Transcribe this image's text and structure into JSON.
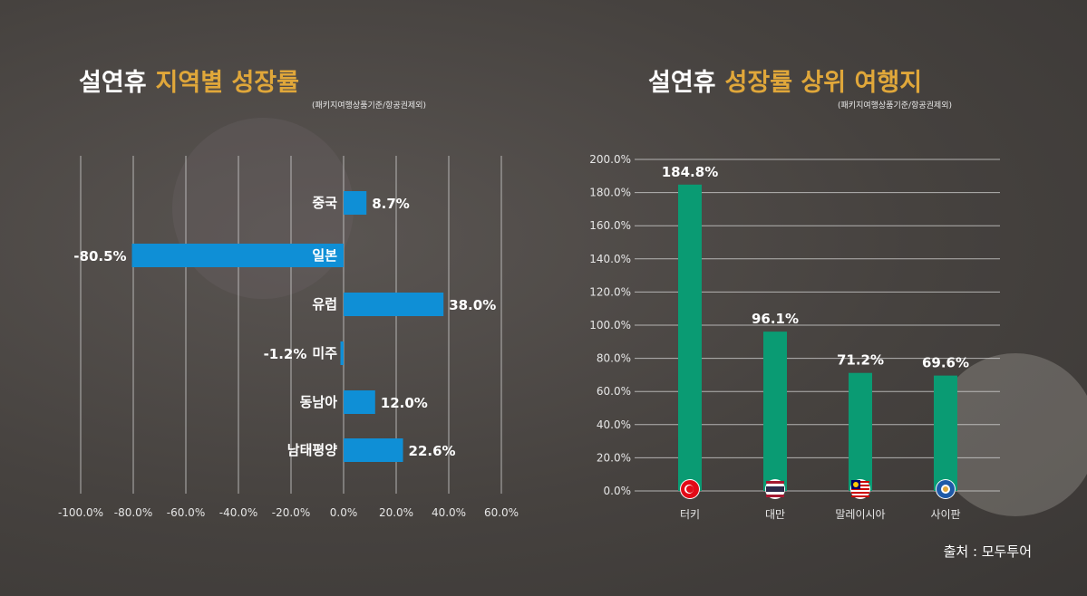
{
  "left": {
    "title_white": "설연휴",
    "title_gold": "지역별 성장률",
    "subtitle": "(패키지여행상품기준/항공권제외)"
  },
  "right": {
    "title_white": "설연휴",
    "title_gold": "성장률 상위 여행지",
    "subtitle": "(패키지여행상품기준/항공권제외)"
  },
  "source": "출처 : 모두투어",
  "colors": {
    "left_bar": "#0f8fd6",
    "right_bar": "#0a9b73",
    "title_accent": "#e0a73a"
  },
  "chart_data": [
    {
      "type": "bar",
      "orientation": "horizontal",
      "categories": [
        "중국",
        "일본",
        "유럽",
        "미주",
        "동남아",
        "남태평양"
      ],
      "values": [
        8.7,
        -80.5,
        38.0,
        -1.2,
        12.0,
        22.6
      ],
      "value_labels": [
        "8.7%",
        "-80.5%",
        "38.0%",
        "-1.2%",
        "12.0%",
        "22.6%"
      ],
      "xlim": [
        -100,
        60
      ],
      "xticks": [
        -100,
        -80,
        -60,
        -40,
        -20,
        0,
        20,
        40,
        60
      ],
      "xtick_labels": [
        "-100.0%",
        "-80.0%",
        "-60.0%",
        "-40.0%",
        "-20.0%",
        "0.0%",
        "20.0%",
        "40.0%",
        "60.0%"
      ],
      "grid": true
    },
    {
      "type": "bar",
      "orientation": "vertical",
      "categories": [
        "터키",
        "대만",
        "말레이시아",
        "사이판"
      ],
      "flags": [
        "turkey-flag",
        "taiwan-thailand-flag",
        "malaysia-flag",
        "saipan-flag"
      ],
      "values": [
        184.8,
        96.1,
        71.2,
        69.6
      ],
      "value_labels": [
        "184.8%",
        "96.1%",
        "71.2%",
        "69.6%"
      ],
      "ylim": [
        0,
        200
      ],
      "yticks": [
        0,
        20,
        40,
        60,
        80,
        100,
        120,
        140,
        160,
        180,
        200
      ],
      "ytick_labels": [
        "0.0%",
        "20.0%",
        "40.0%",
        "60.0%",
        "80.0%",
        "100.0%",
        "120.0%",
        "140.0%",
        "160.0%",
        "180.0%",
        "200.0%"
      ],
      "grid": true
    }
  ]
}
